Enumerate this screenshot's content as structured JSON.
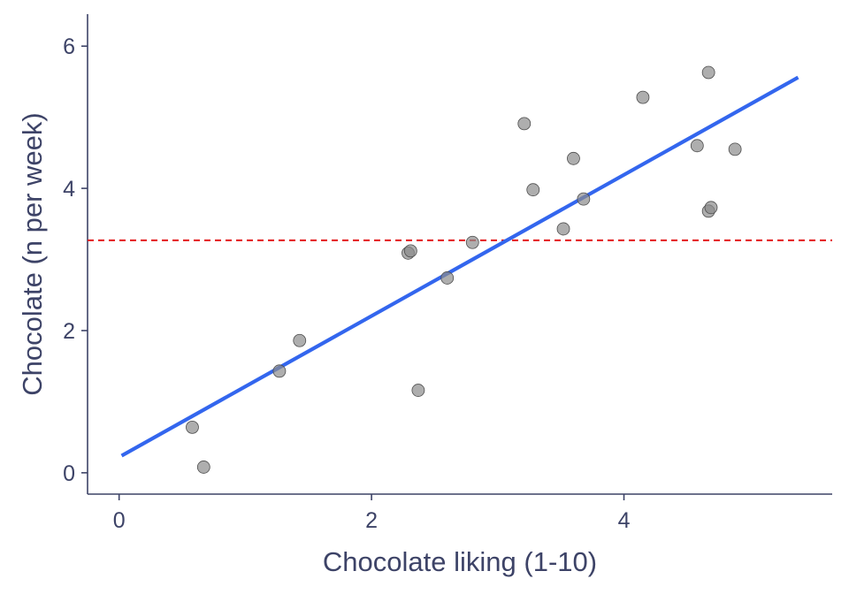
{
  "chart_data": {
    "type": "scatter",
    "xlabel": "Chocolate liking (1-10)",
    "ylabel": "Chocolate (n per week)",
    "xlim": [
      -0.25,
      5.65
    ],
    "ylim": [
      -0.3,
      6.45
    ],
    "xticks": [
      0,
      2,
      4
    ],
    "yticks": [
      0,
      2,
      4,
      6
    ],
    "grid": false,
    "points": [
      {
        "x": 0.58,
        "y": 0.64
      },
      {
        "x": 0.67,
        "y": 0.08
      },
      {
        "x": 1.27,
        "y": 1.43
      },
      {
        "x": 1.43,
        "y": 1.86
      },
      {
        "x": 2.29,
        "y": 3.09
      },
      {
        "x": 2.31,
        "y": 3.12
      },
      {
        "x": 2.37,
        "y": 1.16
      },
      {
        "x": 2.6,
        "y": 2.74
      },
      {
        "x": 2.8,
        "y": 3.24
      },
      {
        "x": 3.21,
        "y": 4.91
      },
      {
        "x": 3.28,
        "y": 3.98
      },
      {
        "x": 3.52,
        "y": 3.43
      },
      {
        "x": 3.6,
        "y": 4.42
      },
      {
        "x": 3.68,
        "y": 3.85
      },
      {
        "x": 4.15,
        "y": 5.28
      },
      {
        "x": 4.58,
        "y": 4.6
      },
      {
        "x": 4.67,
        "y": 5.63
      },
      {
        "x": 4.67,
        "y": 3.68
      },
      {
        "x": 4.69,
        "y": 3.73
      },
      {
        "x": 4.88,
        "y": 4.55
      }
    ],
    "fit_line": {
      "x": [
        0.02,
        5.38
      ],
      "y": [
        0.24,
        5.56
      ],
      "color": "#3366ee"
    },
    "mean_line": {
      "y": 3.27,
      "color": "#e41a1c",
      "style": "dashed"
    },
    "point_color": "#8c8c8c",
    "axis_color": "#3d4367"
  }
}
